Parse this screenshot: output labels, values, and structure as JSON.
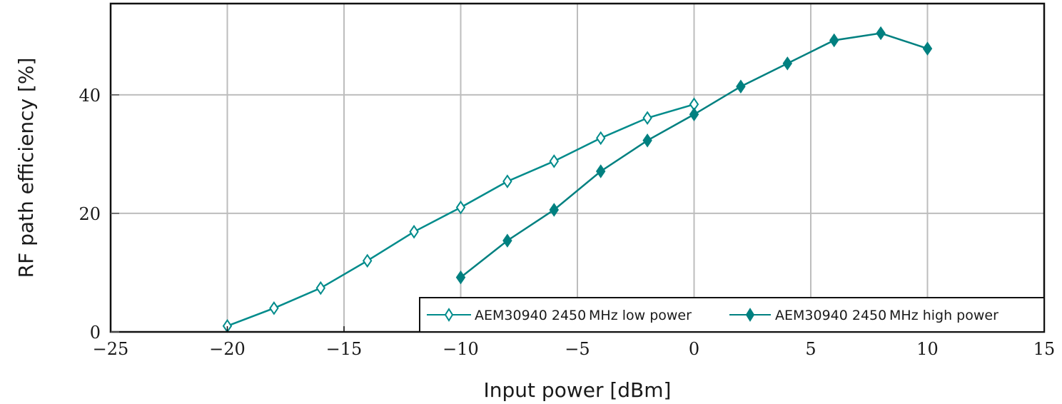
{
  "chart_data": {
    "type": "line",
    "title": "",
    "xlabel": "Input power [dBm]",
    "ylabel": "RF path efficiency [%]",
    "xlim": [
      -25,
      15
    ],
    "ylim": [
      0,
      55.4
    ],
    "xticks": [
      -25,
      -20,
      -15,
      -10,
      -5,
      0,
      5,
      10,
      15
    ],
    "xtick_labels": [
      "−25",
      "−20",
      "−15",
      "−10",
      "−5",
      "0",
      "5",
      "10",
      "15"
    ],
    "yticks": [
      0,
      20,
      40
    ],
    "ytick_labels": [
      "0",
      "20",
      "40"
    ],
    "grid": true,
    "legend_position": "lower right",
    "series": [
      {
        "name": "AEM30940 2450 MHz low power",
        "marker": "open-diamond",
        "color": "#008b8b",
        "x": [
          -20,
          -18,
          -16,
          -14,
          -12,
          -10,
          -8,
          -6,
          -4,
          -2,
          0
        ],
        "y": [
          1.0,
          4.0,
          7.4,
          12.0,
          16.9,
          21.0,
          25.4,
          28.8,
          32.7,
          36.1,
          38.4
        ]
      },
      {
        "name": "AEM30940 2450 MHz high power",
        "marker": "filled-diamond",
        "color": "#008080",
        "x": [
          -10,
          -8,
          -6,
          -4,
          -2,
          0,
          2,
          4,
          6,
          8,
          10
        ],
        "y": [
          9.2,
          15.4,
          20.6,
          27.1,
          32.3,
          36.7,
          41.4,
          45.3,
          49.2,
          50.4,
          47.8
        ]
      }
    ]
  },
  "legend": {
    "items": [
      {
        "label": "AEM30940 2450 MHz low power"
      },
      {
        "label": "AEM30940 2450 MHz high power"
      }
    ]
  }
}
